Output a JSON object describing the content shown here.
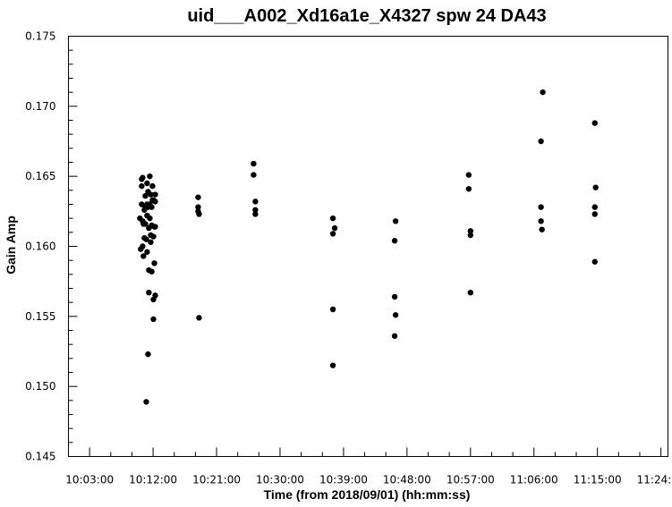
{
  "chart_data": {
    "type": "scatter",
    "title": "uid___A002_Xd16a1e_X4327 spw 24 DA43",
    "xlabel": "Time (from 2018/09/01) (hh:mm:ss)",
    "ylabel": "Gain Amp",
    "xlim": [
      "10:00:00",
      "11:25:00"
    ],
    "ylim": [
      0.145,
      0.175
    ],
    "x_ticks": [
      "10:03:00",
      "10:12:00",
      "10:21:00",
      "10:30:00",
      "10:39:00",
      "10:48:00",
      "10:57:00",
      "11:06:00",
      "11:15:00",
      "11:24:00"
    ],
    "y_ticks": [
      "0.145",
      "0.150",
      "0.155",
      "0.160",
      "0.165",
      "0.170",
      "0.175"
    ],
    "grid": false,
    "legend": "none",
    "marker_color": "#000000",
    "points": [
      [
        "10:10:08",
        0.162
      ],
      [
        "10:10:15",
        0.1598
      ],
      [
        "10:10:23",
        0.163
      ],
      [
        "10:10:23",
        0.1643
      ],
      [
        "10:10:23",
        0.1648
      ],
      [
        "10:10:31",
        0.1649
      ],
      [
        "10:10:31",
        0.1618
      ],
      [
        "10:10:31",
        0.16
      ],
      [
        "10:10:38",
        0.1593
      ],
      [
        "10:10:38",
        0.1616
      ],
      [
        "10:10:46",
        0.1626
      ],
      [
        "10:10:46",
        0.1606
      ],
      [
        "10:10:54",
        0.1616
      ],
      [
        "10:10:54",
        0.1628
      ],
      [
        "10:10:54",
        0.1636
      ],
      [
        "10:11:02",
        0.1605
      ],
      [
        "10:11:02",
        0.1489
      ],
      [
        "10:11:09",
        0.1645
      ],
      [
        "10:11:09",
        0.163
      ],
      [
        "10:11:09",
        0.1622
      ],
      [
        "10:11:09",
        0.1596
      ],
      [
        "10:11:17",
        0.1639
      ],
      [
        "10:11:17",
        0.1628
      ],
      [
        "10:11:17",
        0.1523
      ],
      [
        "10:11:24",
        0.1613
      ],
      [
        "10:11:24",
        0.1583
      ],
      [
        "10:11:24",
        0.1567
      ],
      [
        "10:11:32",
        0.165
      ],
      [
        "10:11:32",
        0.163
      ],
      [
        "10:11:32",
        0.162
      ],
      [
        "10:11:40",
        0.1637
      ],
      [
        "10:11:40",
        0.1608
      ],
      [
        "10:11:40",
        0.1603
      ],
      [
        "10:11:48",
        0.1628
      ],
      [
        "10:11:48",
        0.1615
      ],
      [
        "10:11:48",
        0.1582
      ],
      [
        "10:11:55",
        0.1643
      ],
      [
        "10:11:55",
        0.1633
      ],
      [
        "10:12:03",
        0.1633
      ],
      [
        "10:12:03",
        0.1607
      ],
      [
        "10:12:03",
        0.1562
      ],
      [
        "10:12:03",
        0.1548
      ],
      [
        "10:12:11",
        0.1614
      ],
      [
        "10:12:11",
        0.1588
      ],
      [
        "10:12:18",
        0.1637
      ],
      [
        "10:12:18",
        0.1632
      ],
      [
        "10:12:18",
        0.1614
      ],
      [
        "10:12:18",
        0.1565
      ],
      [
        "10:18:23",
        0.1635
      ],
      [
        "10:18:23",
        0.1628
      ],
      [
        "10:18:23",
        0.1625
      ],
      [
        "10:18:31",
        0.1623
      ],
      [
        "10:18:31",
        0.1549
      ],
      [
        "10:26:15",
        0.1659
      ],
      [
        "10:26:15",
        0.1651
      ],
      [
        "10:26:30",
        0.1632
      ],
      [
        "10:26:30",
        0.1626
      ],
      [
        "10:26:30",
        0.1623
      ],
      [
        "10:37:30",
        0.162
      ],
      [
        "10:37:30",
        0.1609
      ],
      [
        "10:37:30",
        0.1555
      ],
      [
        "10:37:30",
        0.1515
      ],
      [
        "10:37:45",
        0.1613
      ],
      [
        "10:46:15",
        0.1604
      ],
      [
        "10:46:15",
        0.1564
      ],
      [
        "10:46:15",
        0.1536
      ],
      [
        "10:46:23",
        0.1618
      ],
      [
        "10:46:23",
        0.1551
      ],
      [
        "10:56:45",
        0.1651
      ],
      [
        "10:56:45",
        0.1641
      ],
      [
        "10:57:00",
        0.1611
      ],
      [
        "10:57:00",
        0.1608
      ],
      [
        "10:57:00",
        0.1567
      ],
      [
        "11:07:00",
        0.1675
      ],
      [
        "11:07:00",
        0.1628
      ],
      [
        "11:07:00",
        0.1618
      ],
      [
        "11:07:08",
        0.1612
      ],
      [
        "11:07:15",
        0.171
      ],
      [
        "11:14:38",
        0.1688
      ],
      [
        "11:14:38",
        0.1628
      ],
      [
        "11:14:38",
        0.1623
      ],
      [
        "11:14:38",
        0.1589
      ],
      [
        "11:14:45",
        0.1642
      ]
    ]
  }
}
